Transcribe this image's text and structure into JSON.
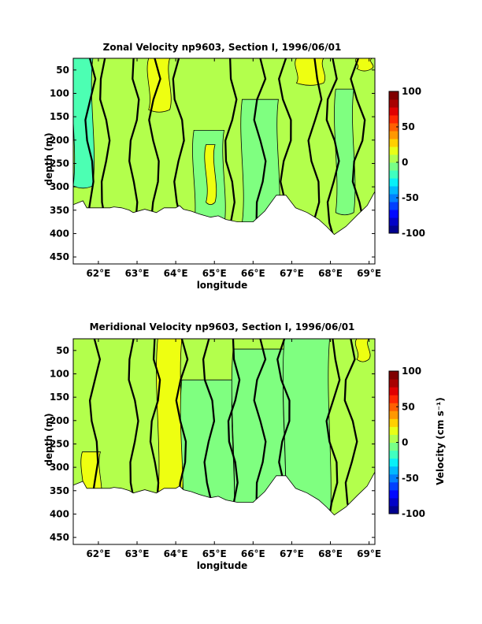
{
  "colors": {
    "background": "#ffffff",
    "axis": "#000000",
    "colormap": [
      "#00008f",
      "#0000c8",
      "#0008ff",
      "#0040ff",
      "#0080ff",
      "#00b8ff",
      "#08f0f8",
      "#40ffc0",
      "#78ff88",
      "#b0ff50",
      "#e8ff18",
      "#ffd000",
      "#ff9800",
      "#ff6000",
      "#ff2800",
      "#e00000",
      "#a80000",
      "#800000"
    ],
    "fill_zero_band": "#7fff80",
    "fill_positive_band": "#b3ff4c",
    "fill_strong_positive": "#eeff11",
    "fill_negative_band": "#4cffb3",
    "fill_strong_negative": "#22ffd9"
  },
  "chart_data": [
    {
      "type": "contour",
      "title": "Zonal Velocity np9603, Section I, 1996/06/01",
      "xlabel": "longitude",
      "ylabel": "depth (m)",
      "xlim": [
        61.35,
        69.15
      ],
      "ylim": [
        465,
        25
      ],
      "x_ticks": [
        62,
        63,
        64,
        65,
        66,
        67,
        68,
        69
      ],
      "x_tick_labels": [
        "62°E",
        "63°E",
        "64°E",
        "65°E",
        "66°E",
        "67°E",
        "68°E",
        "69°E"
      ],
      "y_ticks": [
        50,
        100,
        150,
        200,
        250,
        300,
        350,
        400,
        450
      ],
      "y_tick_labels": [
        "50",
        "100",
        "150",
        "200",
        "250",
        "300",
        "350",
        "400",
        "450"
      ],
      "bottom_depth": [
        [
          61.35,
          338
        ],
        [
          61.6,
          330
        ],
        [
          61.7,
          345
        ],
        [
          62.3,
          345
        ],
        [
          62.4,
          343
        ],
        [
          62.6,
          345
        ],
        [
          62.8,
          350
        ],
        [
          62.9,
          355
        ],
        [
          63.2,
          348
        ],
        [
          63.5,
          355
        ],
        [
          63.7,
          345
        ],
        [
          64.0,
          345
        ],
        [
          64.1,
          340
        ],
        [
          64.2,
          348
        ],
        [
          64.4,
          352
        ],
        [
          64.6,
          358
        ],
        [
          64.9,
          365
        ],
        [
          65.1,
          362
        ],
        [
          65.3,
          370
        ],
        [
          65.6,
          375
        ],
        [
          66.0,
          375
        ],
        [
          66.3,
          352
        ],
        [
          66.6,
          318
        ],
        [
          66.85,
          318
        ],
        [
          67.1,
          345
        ],
        [
          67.4,
          355
        ],
        [
          67.7,
          370
        ],
        [
          67.9,
          385
        ],
        [
          68.1,
          402
        ],
        [
          68.4,
          385
        ],
        [
          68.7,
          360
        ],
        [
          68.95,
          340
        ],
        [
          69.15,
          310
        ]
      ],
      "colorbar": {
        "min": -100,
        "max": 100,
        "ticks": [
          100,
          50,
          0,
          -50,
          -100
        ],
        "tick_labels": [
          "100",
          "50",
          "0",
          "-50",
          "-100"
        ],
        "label": ""
      }
    },
    {
      "type": "contour",
      "title": "Meridional Velocity np9603, Section I, 1996/06/01",
      "xlabel": "longitude",
      "ylabel": "depth (m)",
      "xlim": [
        61.35,
        69.15
      ],
      "ylim": [
        465,
        25
      ],
      "x_ticks": [
        62,
        63,
        64,
        65,
        66,
        67,
        68,
        69
      ],
      "x_tick_labels": [
        "62°E",
        "63°E",
        "64°E",
        "65°E",
        "66°E",
        "67°E",
        "68°E",
        "69°E"
      ],
      "y_ticks": [
        50,
        100,
        150,
        200,
        250,
        300,
        350,
        400,
        450
      ],
      "y_tick_labels": [
        "50",
        "100",
        "150",
        "200",
        "250",
        "300",
        "350",
        "400",
        "450"
      ],
      "bottom_depth": [
        [
          61.35,
          338
        ],
        [
          61.6,
          330
        ],
        [
          61.7,
          345
        ],
        [
          62.3,
          345
        ],
        [
          62.4,
          343
        ],
        [
          62.6,
          345
        ],
        [
          62.8,
          350
        ],
        [
          62.9,
          355
        ],
        [
          63.2,
          348
        ],
        [
          63.5,
          355
        ],
        [
          63.7,
          345
        ],
        [
          64.0,
          345
        ],
        [
          64.1,
          340
        ],
        [
          64.2,
          348
        ],
        [
          64.4,
          352
        ],
        [
          64.6,
          358
        ],
        [
          64.9,
          365
        ],
        [
          65.1,
          362
        ],
        [
          65.3,
          370
        ],
        [
          65.6,
          375
        ],
        [
          66.0,
          375
        ],
        [
          66.3,
          352
        ],
        [
          66.6,
          318
        ],
        [
          66.85,
          318
        ],
        [
          67.1,
          345
        ],
        [
          67.4,
          355
        ],
        [
          67.7,
          370
        ],
        [
          67.9,
          385
        ],
        [
          68.1,
          402
        ],
        [
          68.4,
          385
        ],
        [
          68.7,
          360
        ],
        [
          68.95,
          340
        ],
        [
          69.15,
          310
        ]
      ],
      "colorbar": {
        "min": -100,
        "max": 100,
        "ticks": [
          100,
          50,
          0,
          -50,
          -100
        ],
        "tick_labels": [
          "100",
          "50",
          "0",
          "-50",
          "-100"
        ],
        "label": "Velocity (cm s⁻¹)"
      }
    }
  ]
}
